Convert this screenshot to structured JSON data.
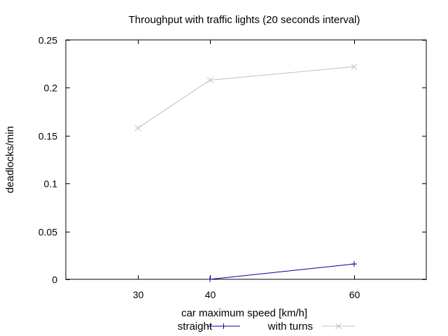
{
  "chart_data": {
    "type": "line",
    "title": "Throughput with traffic lights (20 seconds interval)",
    "xlabel": "car maximum speed [km/h]",
    "ylabel": "deadlocks/min",
    "xlim": [
      20,
      70
    ],
    "ylim": [
      0,
      0.25
    ],
    "xticks": [
      30,
      40,
      60
    ],
    "yticks": [
      0,
      0.05,
      0.1,
      0.15,
      0.2,
      0.25
    ],
    "xtick_labels": [
      "30",
      "40",
      "60"
    ],
    "ytick_labels": [
      "0",
      "0.05",
      "0.1",
      "0.15",
      "0.2",
      "0.25"
    ],
    "grid": false,
    "legend_placement": "bottom-center",
    "series": [
      {
        "name": "straight",
        "color": "#0000a0",
        "marker": "plus",
        "x": [
          40,
          60
        ],
        "values": [
          0.0,
          0.016
        ]
      },
      {
        "name": "with turns",
        "color": "#c0c0c0",
        "marker": "cross",
        "x": [
          30,
          40,
          60
        ],
        "values": [
          0.158,
          0.208,
          0.222
        ]
      }
    ]
  }
}
